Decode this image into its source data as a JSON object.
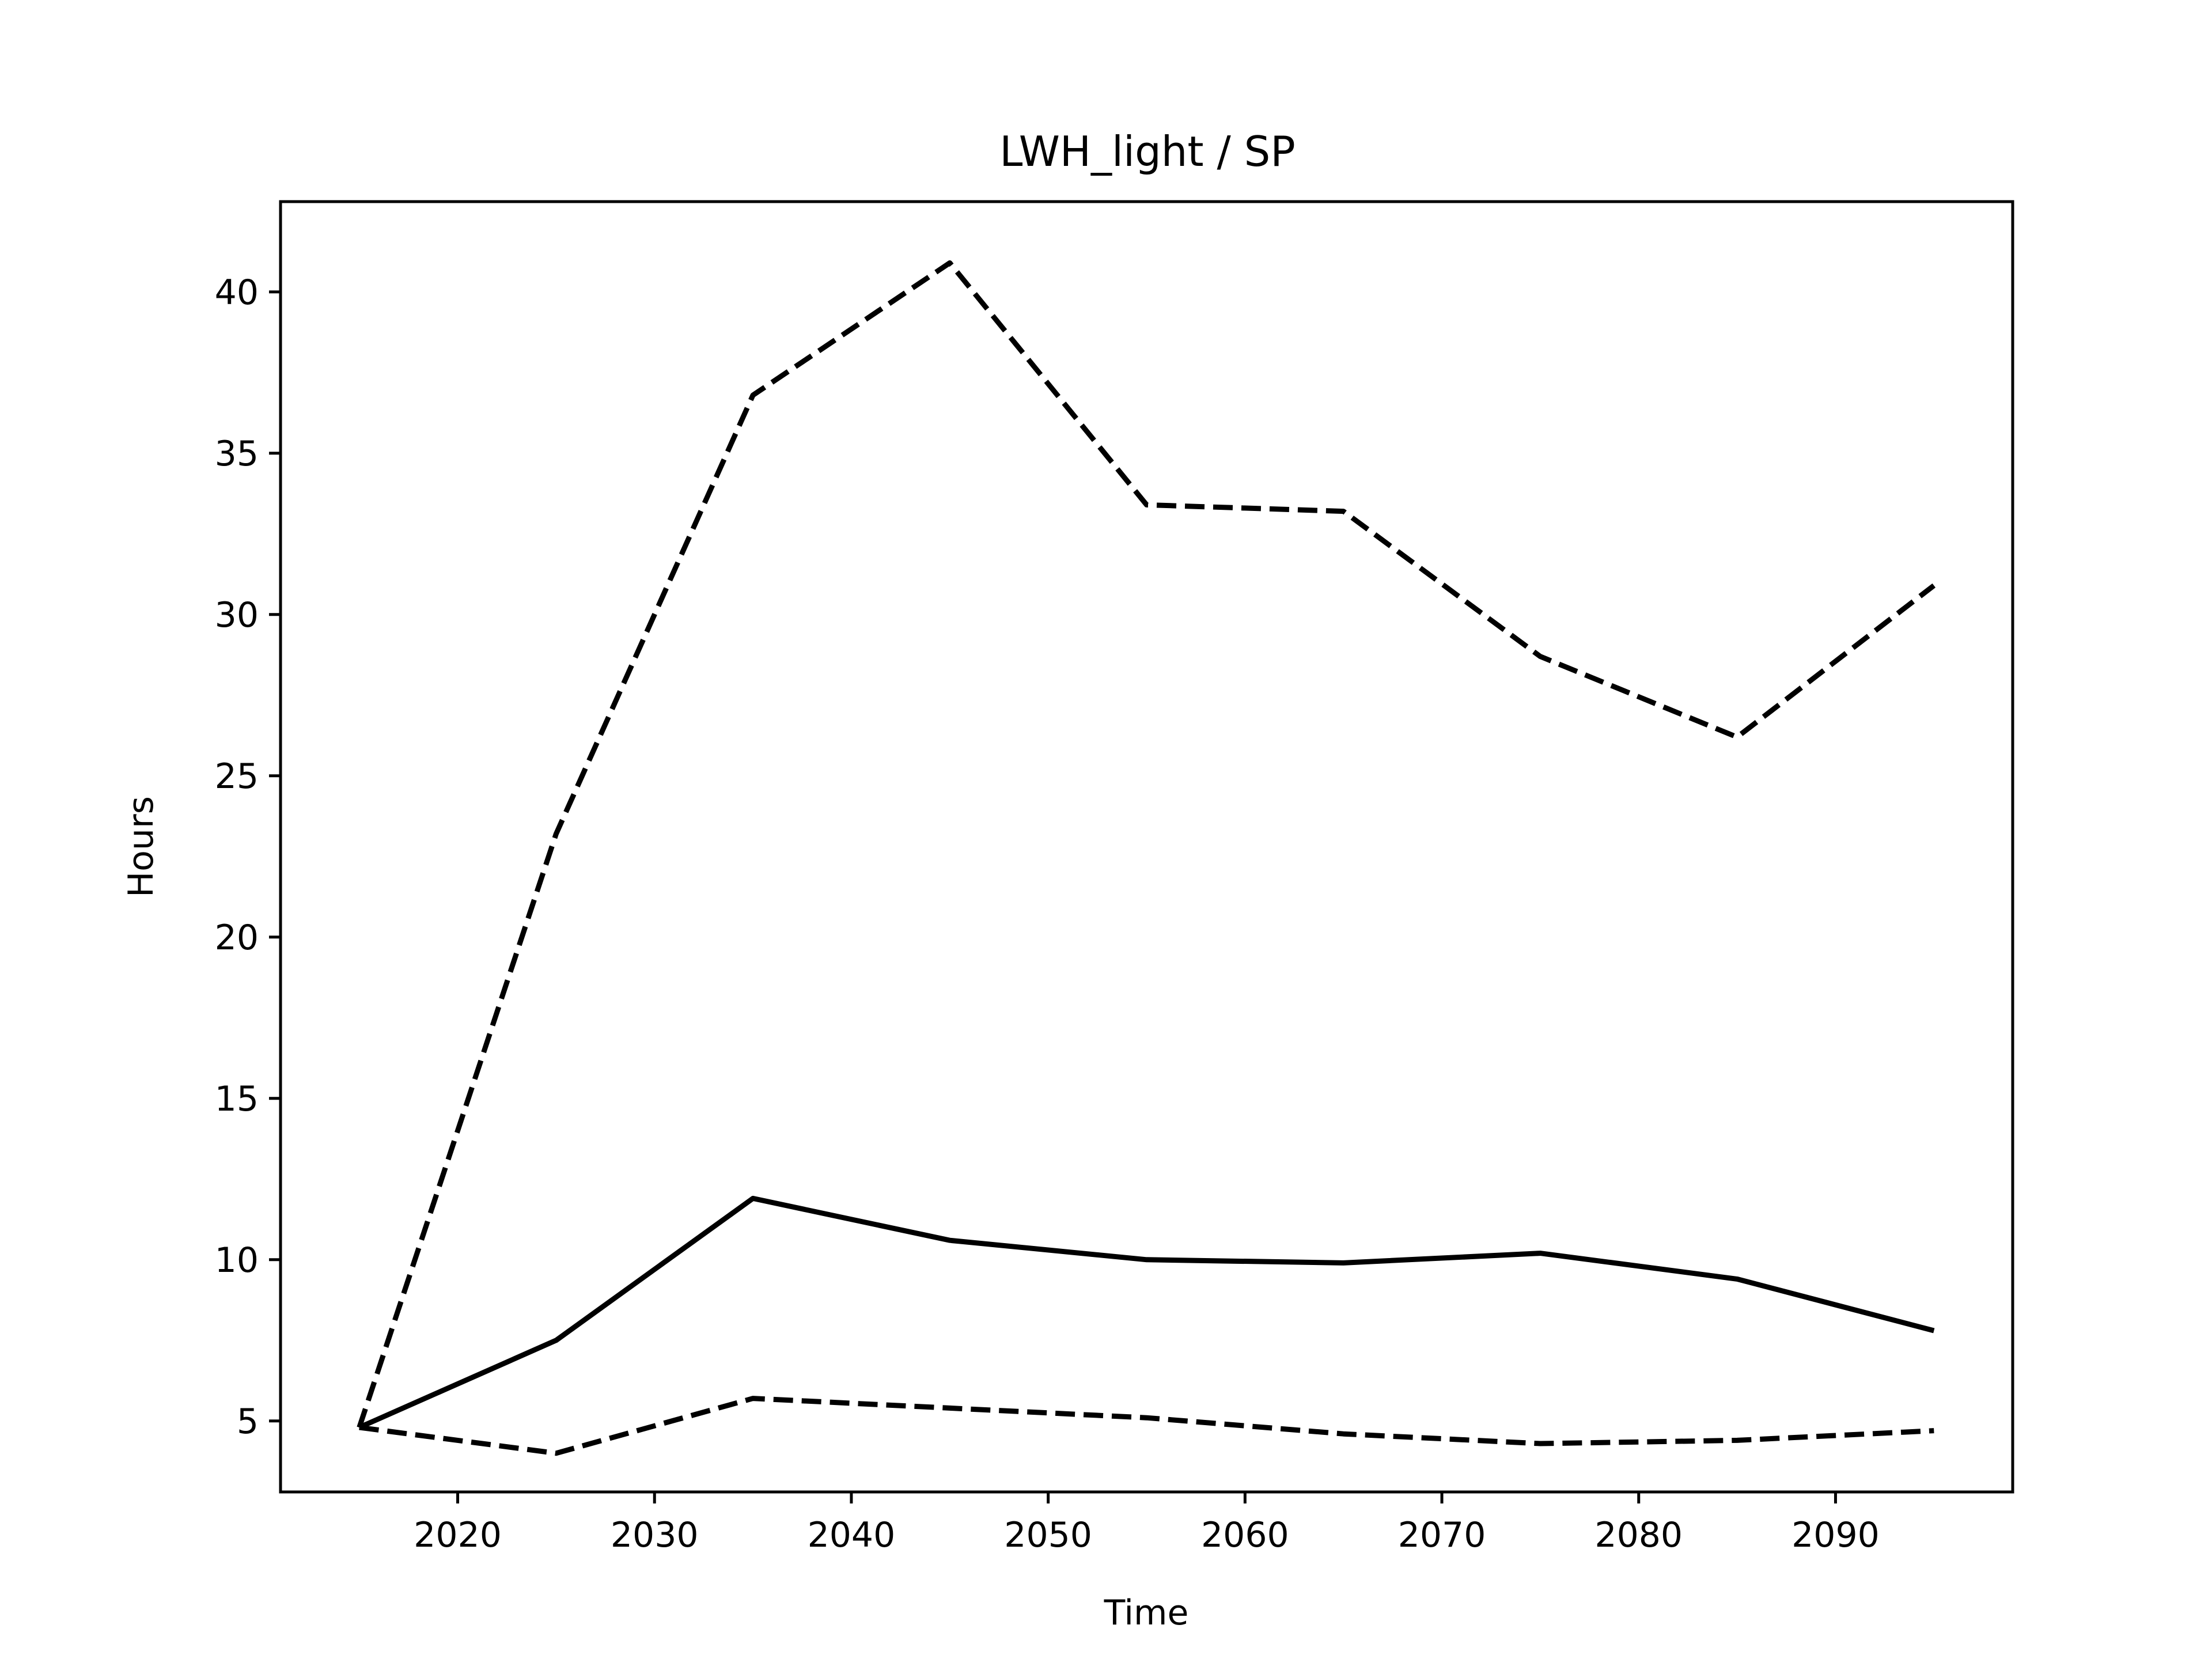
{
  "chart_data": {
    "type": "line",
    "title": "LWH_light / SP",
    "xlabel": "Time",
    "ylabel": "Hours",
    "xlim": [
      2011,
      2099
    ],
    "ylim": [
      2.8,
      42.8
    ],
    "xticks": [
      2020,
      2030,
      2040,
      2050,
      2060,
      2070,
      2080,
      2090
    ],
    "yticks": [
      5,
      10,
      15,
      20,
      25,
      30,
      35,
      40
    ],
    "grid": false,
    "legend": "none",
    "x": [
      2015,
      2025,
      2035,
      2045,
      2055,
      2065,
      2075,
      2085,
      2095
    ],
    "series": [
      {
        "style": "dashed",
        "color": "#000000",
        "values": [
          4.8,
          23.2,
          36.8,
          40.9,
          33.4,
          33.2,
          28.7,
          26.2,
          30.9
        ]
      },
      {
        "style": "solid",
        "color": "#000000",
        "values": [
          4.8,
          7.5,
          11.9,
          10.6,
          10.0,
          9.9,
          10.2,
          9.4,
          7.8
        ]
      },
      {
        "style": "dashed",
        "color": "#000000",
        "values": [
          4.8,
          4.0,
          5.7,
          5.4,
          5.1,
          4.6,
          4.3,
          4.4,
          4.7
        ]
      }
    ]
  }
}
